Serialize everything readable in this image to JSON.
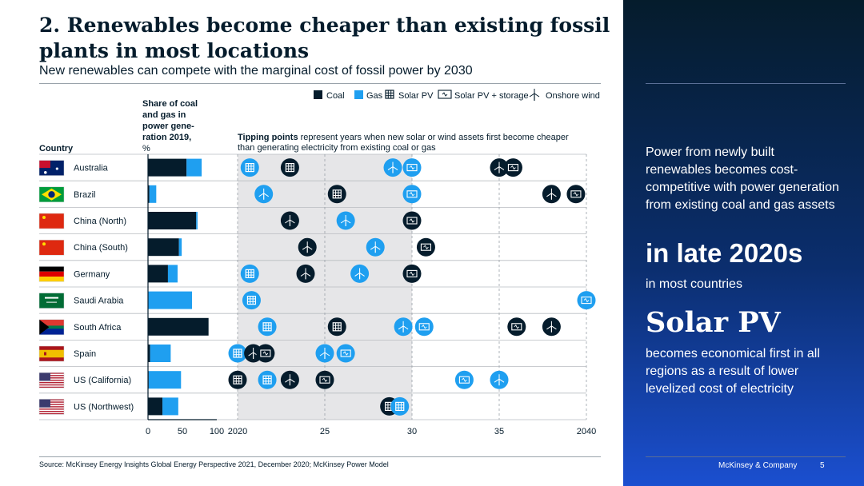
{
  "header": {
    "title": "2. Renewables become cheaper than existing fossil plants in most locations",
    "subtitle": "New renewables can compete with the marginal cost of fossil power by 2030"
  },
  "colors": {
    "coal": "#051c2c",
    "gas": "#1f9ff0",
    "navy": "#051c2c"
  },
  "legend": {
    "coal": "Coal",
    "gas": "Gas",
    "solar": "Solar PV",
    "solar_storage": "Solar PV + storage",
    "wind": "Onshore wind"
  },
  "chart_data": [
    {
      "type": "bar",
      "stacked": true,
      "title": "Share of coal and gas in power generation 2019, %",
      "title_lines": [
        "Share of coal",
        "and gas in",
        "power gene-",
        "ration 2019,",
        "%"
      ],
      "xlim": [
        0,
        100
      ],
      "xticks": [
        "0",
        "50",
        "100"
      ],
      "country_header": "Country",
      "categories": [
        "Australia",
        "Brazil",
        "China (North)",
        "China (South)",
        "Germany",
        "Saudi Arabia",
        "South Africa",
        "Spain",
        "US (California)",
        "US (Northwest)"
      ],
      "series": [
        {
          "name": "Coal",
          "values": [
            56,
            2,
            70,
            45,
            29,
            0,
            88,
            3,
            1,
            21
          ]
        },
        {
          "name": "Gas",
          "values": [
            22,
            10,
            2,
            4,
            14,
            64,
            0,
            30,
            47,
            23
          ]
        }
      ]
    },
    {
      "type": "scatter",
      "title": "Tipping points represent years when new solar or wind assets first become cheaper than generating electricity from existing coal or gas",
      "title_bold": "Tipping points",
      "title_rest_1": " represent years when new solar or wind assets first become cheaper",
      "title_rest_2": "than generating electricity from existing coal or gas",
      "xlim": [
        2020,
        2040
      ],
      "xticks": [
        "2020",
        "25",
        "30",
        "35",
        "2040"
      ],
      "shaded_range": [
        2020,
        2030
      ],
      "points": [
        {
          "country": "Australia",
          "year": 2020.7,
          "fuel": "gas",
          "tech": "solar"
        },
        {
          "country": "Australia",
          "year": 2023.0,
          "fuel": "coal",
          "tech": "solar"
        },
        {
          "country": "Australia",
          "year": 2028.9,
          "fuel": "gas",
          "tech": "wind"
        },
        {
          "country": "Australia",
          "year": 2030.0,
          "fuel": "gas",
          "tech": "solar_storage"
        },
        {
          "country": "Australia",
          "year": 2035.0,
          "fuel": "coal",
          "tech": "wind"
        },
        {
          "country": "Australia",
          "year": 2035.8,
          "fuel": "coal",
          "tech": "solar_storage"
        },
        {
          "country": "Brazil",
          "year": 2021.5,
          "fuel": "gas",
          "tech": "wind"
        },
        {
          "country": "Brazil",
          "year": 2025.7,
          "fuel": "coal",
          "tech": "solar"
        },
        {
          "country": "Brazil",
          "year": 2030.0,
          "fuel": "gas",
          "tech": "solar_storage"
        },
        {
          "country": "Brazil",
          "year": 2038.0,
          "fuel": "coal",
          "tech": "wind"
        },
        {
          "country": "Brazil",
          "year": 2039.4,
          "fuel": "coal",
          "tech": "solar_storage"
        },
        {
          "country": "China (North)",
          "year": 2023.0,
          "fuel": "coal",
          "tech": "wind"
        },
        {
          "country": "China (North)",
          "year": 2026.2,
          "fuel": "gas",
          "tech": "wind"
        },
        {
          "country": "China (North)",
          "year": 2030.0,
          "fuel": "coal",
          "tech": "solar_storage"
        },
        {
          "country": "China (South)",
          "year": 2024.0,
          "fuel": "coal",
          "tech": "wind"
        },
        {
          "country": "China (South)",
          "year": 2027.9,
          "fuel": "gas",
          "tech": "wind"
        },
        {
          "country": "China (South)",
          "year": 2030.8,
          "fuel": "coal",
          "tech": "solar_storage"
        },
        {
          "country": "Germany",
          "year": 2020.7,
          "fuel": "gas",
          "tech": "solar"
        },
        {
          "country": "Germany",
          "year": 2023.9,
          "fuel": "coal",
          "tech": "wind"
        },
        {
          "country": "Germany",
          "year": 2027.0,
          "fuel": "gas",
          "tech": "wind"
        },
        {
          "country": "Germany",
          "year": 2030.0,
          "fuel": "coal",
          "tech": "solar_storage"
        },
        {
          "country": "Saudi Arabia",
          "year": 2020.8,
          "fuel": "gas",
          "tech": "solar"
        },
        {
          "country": "Saudi Arabia",
          "year": 2040.0,
          "fuel": "gas",
          "tech": "solar_storage"
        },
        {
          "country": "South Africa",
          "year": 2021.7,
          "fuel": "gas",
          "tech": "solar"
        },
        {
          "country": "South Africa",
          "year": 2025.7,
          "fuel": "coal",
          "tech": "solar"
        },
        {
          "country": "South Africa",
          "year": 2029.5,
          "fuel": "gas",
          "tech": "wind"
        },
        {
          "country": "South Africa",
          "year": 2030.7,
          "fuel": "gas",
          "tech": "solar_storage"
        },
        {
          "country": "South Africa",
          "year": 2036.0,
          "fuel": "coal",
          "tech": "solar_storage"
        },
        {
          "country": "South Africa",
          "year": 2038.0,
          "fuel": "coal",
          "tech": "wind"
        },
        {
          "country": "Spain",
          "year": 2020.0,
          "fuel": "gas",
          "tech": "solar"
        },
        {
          "country": "Spain",
          "year": 2020.9,
          "fuel": "coal",
          "tech": "wind"
        },
        {
          "country": "Spain",
          "year": 2021.6,
          "fuel": "coal",
          "tech": "solar_storage"
        },
        {
          "country": "Spain",
          "year": 2025.0,
          "fuel": "gas",
          "tech": "wind"
        },
        {
          "country": "Spain",
          "year": 2026.2,
          "fuel": "gas",
          "tech": "solar_storage"
        },
        {
          "country": "US (California)",
          "year": 2020.0,
          "fuel": "coal",
          "tech": "solar"
        },
        {
          "country": "US (California)",
          "year": 2021.7,
          "fuel": "gas",
          "tech": "solar"
        },
        {
          "country": "US (California)",
          "year": 2023.0,
          "fuel": "coal",
          "tech": "wind"
        },
        {
          "country": "US (California)",
          "year": 2025.0,
          "fuel": "coal",
          "tech": "solar_storage"
        },
        {
          "country": "US (California)",
          "year": 2033.0,
          "fuel": "gas",
          "tech": "solar_storage"
        },
        {
          "country": "US (California)",
          "year": 2035.0,
          "fuel": "gas",
          "tech": "wind"
        },
        {
          "country": "US (Northwest)",
          "year": 2028.7,
          "fuel": "coal",
          "tech": "solar"
        },
        {
          "country": "US (Northwest)",
          "year": 2029.3,
          "fuel": "gas",
          "tech": "solar"
        }
      ]
    }
  ],
  "sidebar": {
    "intro": "Power from newly built renewables becomes cost-competitive with power generation from existing coal and gas assets",
    "highlight": "in late 2020s",
    "highlight_sub": "in most countries",
    "tech": "Solar PV",
    "tech_text": "becomes economical first in all regions as a result of lower levelized cost of electricity"
  },
  "footer": {
    "source": "Source: McKinsey Energy Insights Global Energy Perspective 2021, December 2020; McKinsey Power Model",
    "brand": "McKinsey & Company",
    "page": "5"
  }
}
